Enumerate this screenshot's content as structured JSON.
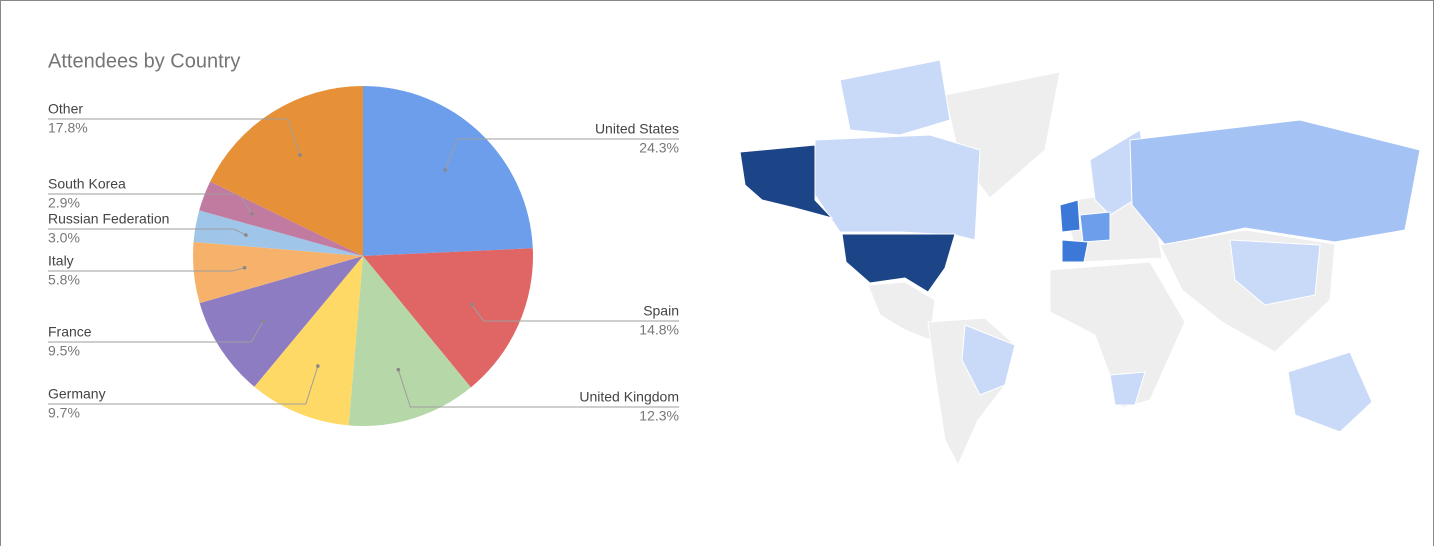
{
  "chart_data": {
    "type": "pie",
    "title": "Attendees by Country",
    "categories": [
      "United States",
      "Spain",
      "United Kingdom",
      "Germany",
      "France",
      "Italy",
      "Russian Federation",
      "South Korea",
      "Other"
    ],
    "values": [
      24.3,
      14.8,
      12.3,
      9.7,
      9.5,
      5.8,
      3.0,
      2.9,
      17.8
    ],
    "value_labels": [
      "24.3%",
      "14.8%",
      "12.3%",
      "9.7%",
      "9.5%",
      "5.8%",
      "3.0%",
      "2.9%",
      "17.8%"
    ],
    "colors": [
      "#6d9eeb",
      "#e06666",
      "#b6d7a8",
      "#ffd966",
      "#8e7cc3",
      "#f6b26b",
      "#9fc5e8",
      "#c27ba0",
      "#e69138"
    ]
  }
}
